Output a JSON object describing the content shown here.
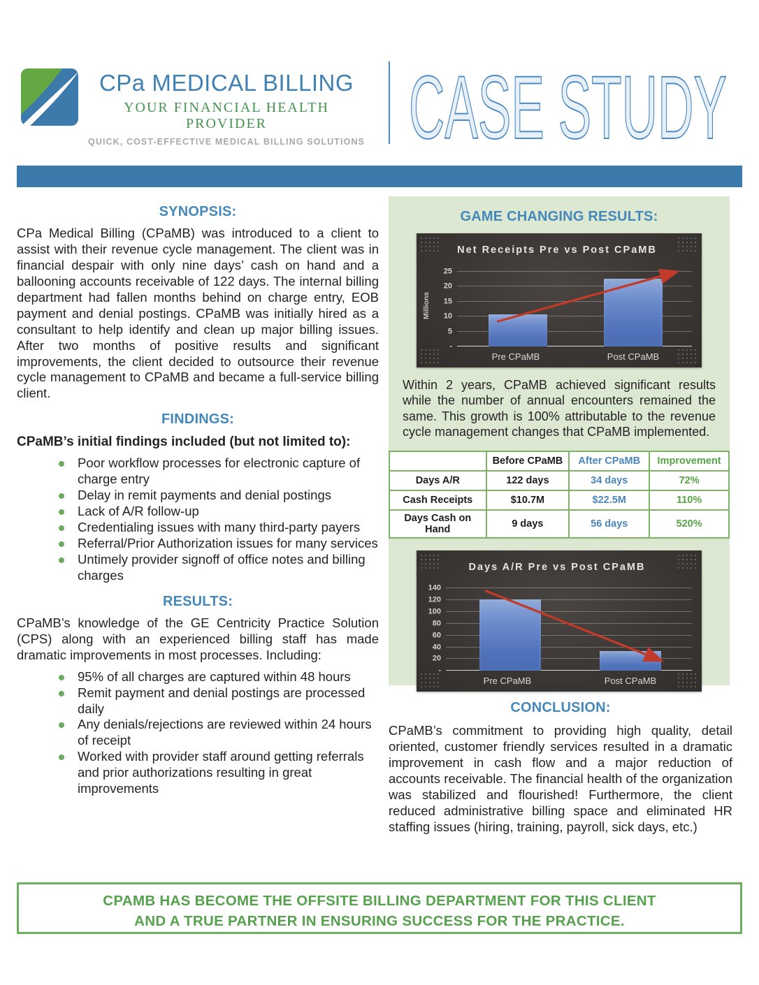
{
  "header": {
    "brand_name": "CPa MEDICAL BILLING",
    "brand_tagline1": "YOUR FINANCIAL HEALTH PROVIDER",
    "brand_tagline2": "QUICK, COST-EFFECTIVE MEDICAL BILLING SOLUTIONS",
    "page_title": "CASE STUDY"
  },
  "colors": {
    "accent_blue": "#4588ba",
    "band_blue": "#3d7aac",
    "panel_green": "#dde8d2",
    "bullet_green": "#6cab5e",
    "table_border_green": "#7cb464",
    "after_blue": "#4b86ba",
    "improvement_green": "#58a345",
    "banner_green": "#57a14e",
    "bar_blue": "#5b7fc4",
    "arrow_red": "#c23b2a"
  },
  "synopsis": {
    "heading": "SYNOPSIS:",
    "body": "CPa Medical Billing (CPaMB) was introduced to a client to assist with their revenue cycle management. The client was in financial despair with only nine days’ cash on hand and a ballooning accounts receivable of 122 days. The internal billing department had fallen months behind on charge entry, EOB payment and denial postings. CPaMB was initially hired as a consultant to help identify and clean up major billing issues. After two months of positive results and significant improvements, the client decided to outsource their revenue cycle management to CPaMB and became a full-service billing client."
  },
  "findings": {
    "heading": "FINDINGS:",
    "intro": "CPaMB’s initial findings included (but not limited to):",
    "items": [
      "Poor workflow processes for electronic capture of charge entry",
      "Delay in remit payments and denial postings",
      "Lack of A/R follow-up",
      "Credentialing issues with many third-party payers",
      "Referral/Prior Authorization issues for many services",
      "Untimely provider signoff of office notes and billing charges"
    ]
  },
  "results": {
    "heading": "RESULTS:",
    "body": "CPaMB’s knowledge of the GE Centricity Practice Solution (CPS) along with an experienced billing staff has made dramatic improvements in most processes. Including:",
    "items": [
      "95% of all charges are captured within 48 hours",
      "Remit payment and denial postings are processed daily",
      "Any denials/rejections are reviewed within 24 hours of receipt",
      "Worked with provider staff around getting referrals and prior authorizations resulting in great improvements"
    ]
  },
  "right_panel": {
    "heading": "GAME CHANGING RESULTS:",
    "note": "Within 2 years, CPaMB achieved significant results while the number of annual encounters remained the same. This growth is 100% attributable to the revenue cycle management changes that CPaMB implemented.",
    "table": {
      "headers": [
        "",
        "Before CPaMB",
        "After CPaMB",
        "Improvement"
      ],
      "rows": [
        {
          "label": "Days A/R",
          "before": "122 days",
          "after": "34 days",
          "improvement": "72%"
        },
        {
          "label": "Cash Receipts",
          "before": "$10.7M",
          "after": "$22.5M",
          "improvement": "110%"
        },
        {
          "label": "Days Cash on Hand",
          "before": "9 days",
          "after": "56 days",
          "improvement": "520%"
        }
      ]
    }
  },
  "conclusion": {
    "heading": "CONCLUSION:",
    "body": "CPaMB’s commitment to providing high quality, detail oriented, customer friendly services resulted in a dramatic improvement in cash flow and a major reduction of accounts receivable. The financial health of the organization was stabilized and flourished! Furthermore, the client reduced administrative billing space and eliminated HR staffing issues (hiring, training, payroll, sick days, etc.)"
  },
  "banner": {
    "line1": "CPaMB HAS BECOME THE OFFSITE BILLING DEPARTMENT FOR THIS CLIENT",
    "line2": "AND A TRUE PARTNER IN ENSURING SUCCESS FOR THE PRACTICE."
  },
  "chart_data": [
    {
      "type": "bar",
      "title": "Net Receipts Pre vs Post CPaMB",
      "ylabel": "Millions",
      "categories": [
        "Pre CPaMB",
        "Post CPaMB"
      ],
      "values": [
        10.7,
        22.5
      ],
      "ylim": [
        0,
        27.5
      ],
      "yticks": [
        {
          "v": 25,
          "label": "25"
        },
        {
          "v": 20,
          "label": "20"
        },
        {
          "v": 15,
          "label": "15"
        },
        {
          "v": 10,
          "label": "10"
        },
        {
          "v": 5,
          "label": "5"
        },
        {
          "v": 0,
          "label": "-"
        }
      ],
      "grid": true,
      "legend": "none",
      "trend_arrow": {
        "x1": 0.17,
        "y1": 8.3,
        "x2": 0.93,
        "y2": 24.8
      },
      "arrow_color": "#c23b2a"
    },
    {
      "type": "bar",
      "title": "Days A/R Pre vs Post CPaMB",
      "ylabel": "",
      "categories": [
        "Pre CPaMB",
        "Post CPaMB"
      ],
      "values": [
        122,
        34
      ],
      "ylim": [
        0,
        152
      ],
      "yticks": [
        {
          "v": 140,
          "label": "140"
        },
        {
          "v": 120,
          "label": "120"
        },
        {
          "v": 100,
          "label": "100"
        },
        {
          "v": 80,
          "label": "80"
        },
        {
          "v": 60,
          "label": "60"
        },
        {
          "v": 40,
          "label": "40"
        },
        {
          "v": 20,
          "label": "20"
        },
        {
          "v": 0,
          "label": "-"
        }
      ],
      "grid": true,
      "legend": "none",
      "trend_arrow": {
        "x1": 0.16,
        "y1": 136,
        "x2": 0.87,
        "y2": 18
      },
      "arrow_color": "#c23b2a"
    }
  ]
}
